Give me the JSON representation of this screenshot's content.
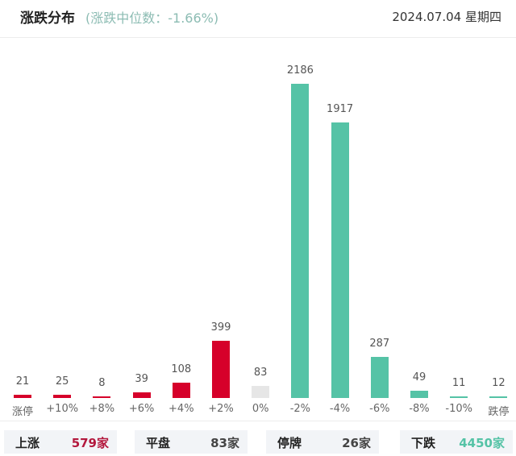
{
  "header": {
    "title": "涨跌分布",
    "subtitle": "(涨跌中位数：-1.66%)",
    "date": "2024.07.04 星期四"
  },
  "colors": {
    "up": "#d6002a",
    "flat": "#e6e6e6",
    "down": "#55c3a6",
    "up_text": "#b3183d",
    "flat_text": "#444444",
    "down_text": "#55c3a6"
  },
  "chart_data": {
    "type": "bar",
    "title": "涨跌分布",
    "subtitle": "涨跌中位数：-1.66%",
    "categories": [
      "涨停",
      "+10%",
      "+8%",
      "+6%",
      "+4%",
      "+2%",
      "0%",
      "-2%",
      "-4%",
      "-6%",
      "-8%",
      "-10%",
      "跌停"
    ],
    "values": [
      21,
      25,
      8,
      39,
      108,
      399,
      83,
      2186,
      1917,
      287,
      49,
      11,
      12
    ],
    "bar_colors": [
      "up",
      "up",
      "up",
      "up",
      "up",
      "up",
      "flat",
      "down",
      "down",
      "down",
      "down",
      "down",
      "down"
    ],
    "value_labels": [
      "21",
      "25",
      "8",
      "39",
      "108",
      "399",
      "83",
      "2186",
      "1917",
      "287",
      "49",
      "11",
      "12"
    ],
    "xlabel": "",
    "ylabel": "",
    "ylim": [
      0,
      2186
    ],
    "grid": false,
    "legend": "none"
  },
  "summary": [
    {
      "label": "上涨",
      "value": "579家",
      "tone": "up"
    },
    {
      "label": "平盘",
      "value": "83家",
      "tone": "flat"
    },
    {
      "label": "停牌",
      "value": "26家",
      "tone": "flat"
    },
    {
      "label": "下跌",
      "value": "4450家",
      "tone": "down"
    }
  ]
}
